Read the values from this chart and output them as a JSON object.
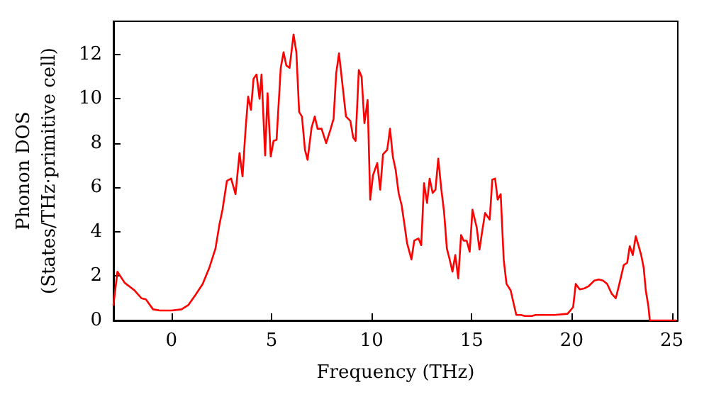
{
  "chart_data": {
    "type": "line",
    "xlabel": "Frequency (THz)",
    "ylabel": "Phonon DOS\n(States/THz·primitive cell)",
    "xlim": [
      -2.9,
      25.3
    ],
    "ylim": [
      0,
      13.5
    ],
    "xticks": [
      0,
      5,
      10,
      15,
      20,
      25
    ],
    "yticks": [
      0,
      2,
      4,
      6,
      8,
      10,
      12
    ],
    "marker": "none",
    "line_style": "solid",
    "series": [
      {
        "color": "#ff0000",
        "x": [
          -2.9,
          -2.7,
          -2.34,
          -1.84,
          -1.5,
          -1.28,
          -0.92,
          -0.57,
          0,
          0.5,
          0.85,
          1.2,
          1.56,
          1.9,
          2.2,
          2.4,
          2.55,
          2.77,
          2.98,
          3.2,
          3.4,
          3.55,
          3.7,
          3.83,
          3.97,
          4.1,
          4.25,
          4.4,
          4.5,
          4.68,
          4.8,
          4.96,
          5.1,
          5.25,
          5.46,
          5.6,
          5.74,
          5.9,
          6.1,
          6.24,
          6.38,
          6.52,
          6.67,
          6.8,
          7.0,
          7.16,
          7.3,
          7.5,
          7.73,
          7.94,
          8.1,
          8.23,
          8.37,
          8.5,
          8.72,
          8.94,
          9.08,
          9.2,
          9.36,
          9.5,
          9.64,
          9.8,
          9.93,
          10.07,
          10.28,
          10.43,
          10.57,
          10.78,
          10.92,
          11.06,
          11.2,
          11.35,
          11.5,
          11.63,
          11.77,
          11.99,
          12.13,
          12.34,
          12.48,
          12.62,
          12.77,
          12.9,
          13.05,
          13.19,
          13.33,
          13.48,
          13.62,
          13.76,
          13.9,
          14.04,
          14.18,
          14.33,
          14.47,
          14.6,
          14.75,
          14.9,
          15.04,
          15.25,
          15.39,
          15.53,
          15.67,
          15.9,
          16.03,
          16.17,
          16.3,
          16.45,
          16.6,
          16.74,
          16.95,
          17.1,
          17.23,
          17.45,
          17.66,
          18.0,
          18.2,
          18.36,
          18.72,
          19.15,
          19.79,
          20.07,
          20.2,
          20.4,
          20.64,
          20.85,
          21.13,
          21.35,
          21.56,
          21.77,
          22.0,
          22.2,
          22.34,
          22.6,
          22.77,
          22.9,
          23.05,
          23.2,
          23.33,
          23.47,
          23.6,
          23.7,
          23.83,
          23.9,
          24.75,
          25.2
        ],
        "values": [
          0.7,
          2.2,
          1.7,
          1.35,
          1.0,
          0.95,
          0.5,
          0.45,
          0.45,
          0.5,
          0.7,
          1.15,
          1.65,
          2.4,
          3.25,
          4.35,
          5,
          6.3,
          6.4,
          5.7,
          7.55,
          6.5,
          8.6,
          10.1,
          9.5,
          10.9,
          11.1,
          10,
          11.1,
          7.45,
          10.25,
          7.4,
          8.1,
          8.15,
          11.4,
          12.1,
          11.5,
          11.4,
          12.9,
          12.1,
          9.4,
          9.2,
          7.7,
          7.25,
          8.7,
          9.2,
          8.65,
          8.65,
          8.0,
          8.6,
          9.1,
          11.15,
          12.05,
          11.0,
          9.2,
          9.0,
          8.25,
          8.1,
          11.3,
          11.0,
          8.9,
          9.95,
          5.45,
          6.55,
          7.1,
          5.9,
          7.5,
          7.7,
          8.65,
          7.4,
          6.8,
          5.75,
          5.2,
          4.4,
          3.5,
          2.75,
          3.6,
          3.7,
          3.4,
          6.2,
          5.3,
          6.4,
          5.75,
          5.9,
          7.3,
          5.95,
          4.9,
          3.25,
          2.75,
          2.2,
          2.95,
          1.9,
          3.85,
          3.6,
          3.6,
          3.1,
          5.0,
          4.2,
          3.2,
          4.05,
          4.85,
          4.55,
          6.35,
          6.4,
          5.45,
          5.7,
          2.75,
          1.65,
          1.35,
          0.75,
          0.25,
          0.25,
          0.2,
          0.2,
          0.25,
          0.25,
          0.25,
          0.25,
          0.3,
          0.6,
          1.65,
          1.4,
          1.45,
          1.55,
          1.8,
          1.85,
          1.8,
          1.65,
          1.2,
          1.0,
          1.5,
          2.5,
          2.6,
          3.35,
          2.95,
          3.8,
          3.4,
          2.95,
          2.35,
          1.35,
          0.65,
          0,
          0,
          0
        ]
      }
    ]
  }
}
